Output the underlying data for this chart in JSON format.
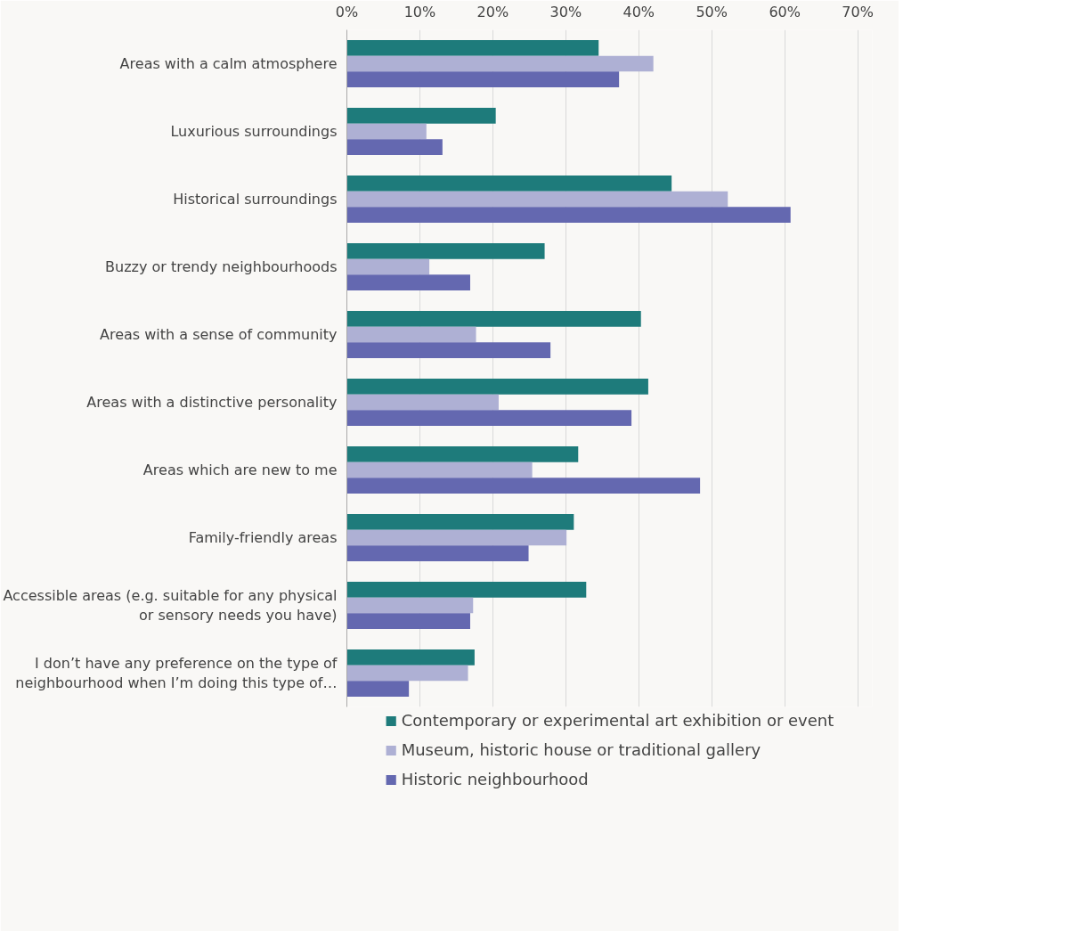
{
  "chart_data": {
    "type": "bar",
    "orientation": "horizontal",
    "categories": [
      "Areas with a calm atmosphere",
      "Luxurious surroundings",
      "Historical surroundings",
      "Buzzy or trendy neighbourhoods",
      "Areas with a sense of community",
      "Areas with a distinctive personality",
      "Areas which are new to me",
      "Family-friendly areas",
      "Accessible areas (e.g. suitable for any physical or sensory needs you have)",
      "I don’t have any preference on the type of neighbourhood when I’m doing this type of…"
    ],
    "series": [
      {
        "name": "Contemporary or experimental art exhibition or event",
        "color": "#1e7b7b",
        "values": [
          34.5,
          20.4,
          44.5,
          27.1,
          40.3,
          41.3,
          31.7,
          31.1,
          32.8,
          17.5
        ]
      },
      {
        "name": "Museum, historic house or traditional gallery",
        "color": "#aeb0d4",
        "values": [
          42.0,
          10.9,
          52.2,
          11.3,
          17.7,
          20.8,
          25.4,
          30.1,
          17.3,
          16.6
        ]
      },
      {
        "name": "Historic neighbourhood",
        "color": "#6468b0",
        "values": [
          37.3,
          13.1,
          60.8,
          16.9,
          27.9,
          39.0,
          48.4,
          24.9,
          16.9,
          8.5
        ]
      }
    ],
    "xlim": [
      0,
      72
    ],
    "xticks": [
      {
        "value": 0,
        "label": "0%"
      },
      {
        "value": 10,
        "label": "10%"
      },
      {
        "value": 20,
        "label": "20%"
      },
      {
        "value": 30,
        "label": "30%"
      },
      {
        "value": 40,
        "label": "40%"
      },
      {
        "value": 50,
        "label": "50%"
      },
      {
        "value": 60,
        "label": "60%"
      },
      {
        "value": 70,
        "label": "70%"
      }
    ],
    "grid": "x",
    "legend": "bottom"
  }
}
